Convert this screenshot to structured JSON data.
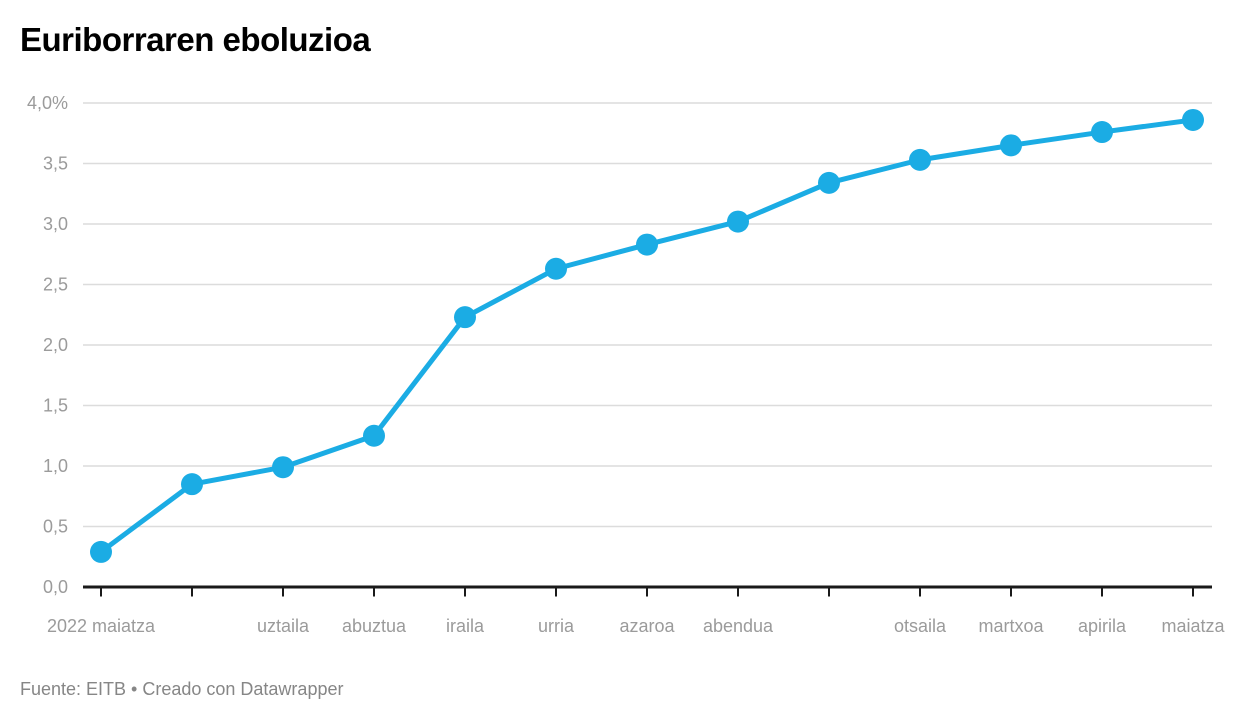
{
  "page": {
    "title": "Euriborraren eboluzioa",
    "footer": "Fuente: EITB • Creado con Datawrapper"
  },
  "chart_data": {
    "type": "line",
    "title": "Euriborraren eboluzioa",
    "source_text": "Fuente: EITB",
    "attribution_text": "Creado con Datawrapper",
    "x_labels": [
      "2022 maiatza",
      "",
      "uztaila",
      "abuztua",
      "iraila",
      "urria",
      "azaroa",
      "abendua",
      "",
      "otsaila",
      "martxoa",
      "apirila",
      "maiatza"
    ],
    "values": [
      0.29,
      0.85,
      0.99,
      1.25,
      2.23,
      2.63,
      2.83,
      3.02,
      3.34,
      3.53,
      3.65,
      3.76,
      3.86
    ],
    "ylim": [
      0,
      4
    ],
    "yticks": [
      {
        "value": 0,
        "label": "0,0"
      },
      {
        "value": 0.5,
        "label": "0,5"
      },
      {
        "value": 1,
        "label": "1,0"
      },
      {
        "value": 1.5,
        "label": "1,5"
      },
      {
        "value": 2,
        "label": "2,0"
      },
      {
        "value": 2.5,
        "label": "2,5"
      },
      {
        "value": 3,
        "label": "3,0"
      },
      {
        "value": 3.5,
        "label": "3,5"
      },
      {
        "value": 4,
        "label": "4,0%"
      }
    ],
    "xlabel": "",
    "ylabel": "",
    "grid": "horizontal",
    "legend": "none",
    "marker": "circle",
    "colors": {
      "line": "#1bace4",
      "grid": "#dcdcdc",
      "axis_line": "#1a1a1a",
      "axis_text": "#9b9b9b",
      "title_text": "#000000",
      "footer_text": "#868686",
      "background": "#ffffff"
    }
  }
}
